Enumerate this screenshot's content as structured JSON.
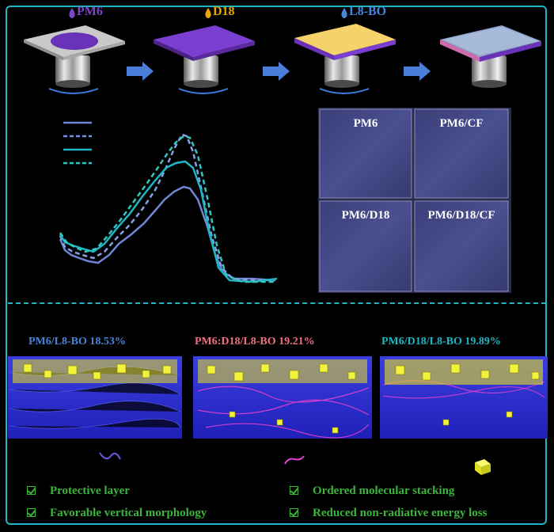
{
  "process": {
    "steps": [
      {
        "label": "PM6",
        "color": "#7d45c8"
      },
      {
        "label": "D18",
        "color": "#e8a400"
      },
      {
        "label": "L8-BO",
        "color": "#4a84d6"
      }
    ]
  },
  "films": {
    "tiles": [
      "PM6",
      "PM6/CF",
      "PM6/D18",
      "PM6/D18/CF"
    ]
  },
  "morphology": {
    "panels": [
      {
        "label": "PM6/L8-BO 18.53%",
        "color": "#4a84d6"
      },
      {
        "label": "PM6:D18/L8-BO 19.21%",
        "color": "#f07080"
      },
      {
        "label": "PM6/D18/L8-BO 19.89%",
        "color": "#1fb6c4"
      }
    ]
  },
  "features": [
    "Protective layer",
    "Favorable vertical morphology",
    "Ordered molecular stacking",
    "Reduced non-radiative energy loss"
  ],
  "colors": {
    "accent": "#1fb6c4",
    "check": "#3bb53a"
  }
}
